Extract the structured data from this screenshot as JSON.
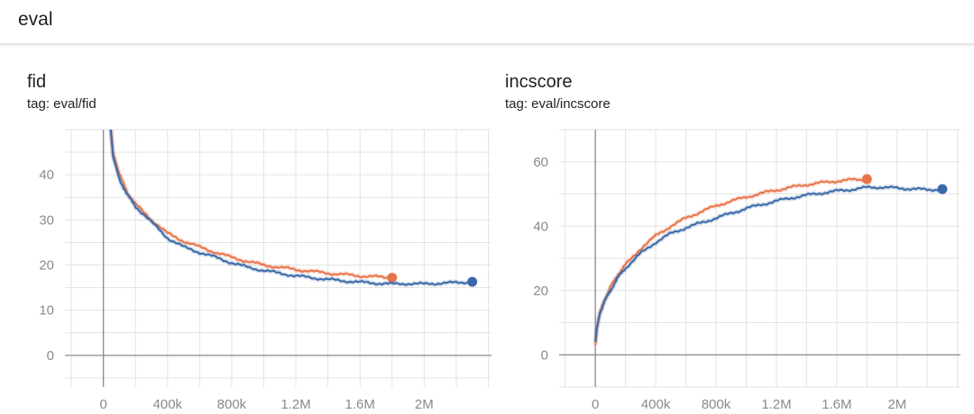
{
  "header": {
    "title": "eval"
  },
  "charts": [
    {
      "title": "fid",
      "tag": "tag: eval/fid"
    },
    {
      "title": "incscore",
      "tag": "tag: eval/incscore"
    }
  ],
  "chart_data": [
    {
      "type": "line",
      "title": "fid",
      "subtitle": "tag: eval/fid",
      "xlim": [
        -240000,
        2420000
      ],
      "ylim": [
        -7,
        50
      ],
      "x_ticks": [
        0,
        400000,
        800000,
        1200000,
        1600000,
        2000000
      ],
      "x_tick_labels": [
        "0",
        "400k",
        "800k",
        "1.2M",
        "1.6M",
        "2M"
      ],
      "y_ticks": [
        0,
        10,
        20,
        30,
        40
      ],
      "y_tick_labels": [
        "0",
        "10",
        "20",
        "30",
        "40"
      ],
      "grid": true,
      "series": [
        {
          "color": "#e8744a",
          "x": [
            20000,
            60000,
            100000,
            150000,
            200000,
            300000,
            400000,
            500000,
            600000,
            700000,
            800000,
            900000,
            1000000,
            1100000,
            1200000,
            1300000,
            1400000,
            1500000,
            1600000,
            1700000,
            1800000
          ],
          "y": [
            60,
            45,
            40,
            36,
            33.5,
            30,
            27,
            25.3,
            24,
            22.8,
            21.7,
            20.8,
            20,
            19.5,
            19,
            18.6,
            18.2,
            17.9,
            17.6,
            17.4,
            17.2
          ]
        },
        {
          "color": "#3a6aa8",
          "x": [
            20000,
            60000,
            100000,
            150000,
            200000,
            300000,
            400000,
            500000,
            600000,
            700000,
            800000,
            900000,
            1000000,
            1100000,
            1200000,
            1300000,
            1400000,
            1500000,
            1600000,
            1700000,
            1800000,
            1900000,
            2000000,
            2100000,
            2200000,
            2300000
          ],
          "y": [
            60,
            44,
            39,
            35.5,
            33,
            29.5,
            26,
            24,
            22.8,
            21.7,
            20.5,
            19.5,
            18.8,
            18.2,
            17.6,
            17.2,
            16.8,
            16.5,
            16.2,
            16,
            15.8,
            15.9,
            15.8,
            16,
            16.1,
            16.3
          ]
        }
      ]
    },
    {
      "type": "line",
      "title": "incscore",
      "subtitle": "tag: eval/incscore",
      "xlim": [
        -240000,
        2420000
      ],
      "ylim": [
        -10,
        70
      ],
      "x_ticks": [
        0,
        400000,
        800000,
        1200000,
        1600000,
        2000000
      ],
      "x_tick_labels": [
        "0",
        "400k",
        "800k",
        "1.2M",
        "1.6M",
        "2M"
      ],
      "y_ticks": [
        0,
        20,
        40,
        60
      ],
      "y_tick_labels": [
        "0",
        "20",
        "40",
        "60"
      ],
      "grid": true,
      "series": [
        {
          "color": "#e8744a",
          "x": [
            0,
            10000,
            30000,
            60000,
            100000,
            150000,
            200000,
            300000,
            400000,
            500000,
            600000,
            700000,
            800000,
            900000,
            1000000,
            1100000,
            1200000,
            1300000,
            1400000,
            1500000,
            1600000,
            1700000,
            1800000
          ],
          "y": [
            3,
            8,
            13,
            17,
            21,
            25,
            28,
            33,
            37,
            40,
            42.5,
            44.5,
            46.3,
            47.8,
            49,
            50.2,
            51.2,
            52.1,
            52.9,
            53.5,
            54,
            54.4,
            54.6
          ]
        },
        {
          "color": "#3a6aa8",
          "x": [
            0,
            10000,
            30000,
            60000,
            100000,
            150000,
            200000,
            300000,
            400000,
            500000,
            600000,
            700000,
            800000,
            900000,
            1000000,
            1100000,
            1200000,
            1300000,
            1400000,
            1500000,
            1600000,
            1700000,
            1800000,
            1900000,
            2000000,
            2100000,
            2200000,
            2300000
          ],
          "y": [
            4,
            8.5,
            13,
            16.5,
            20,
            24,
            27,
            31.5,
            35,
            37.7,
            39.5,
            41,
            42.5,
            44,
            45.5,
            46.7,
            47.8,
            48.8,
            49.6,
            50.3,
            50.9,
            51.4,
            52,
            52.1,
            51.8,
            51.6,
            51.3,
            51.5
          ]
        }
      ]
    }
  ]
}
